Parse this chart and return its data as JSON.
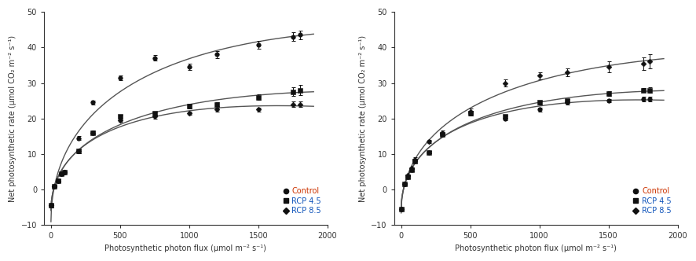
{
  "left": {
    "x_data": [
      0,
      25,
      50,
      75,
      100,
      200,
      300,
      500,
      750,
      1000,
      1200,
      1500,
      1750,
      1800
    ],
    "control_y": [
      -4.5,
      1.0,
      2.5,
      4.5,
      5.0,
      14.5,
      24.5,
      31.5,
      37.0,
      34.5,
      38.0,
      40.8,
      43.0,
      43.5
    ],
    "control_err": [
      0.5,
      0.4,
      0.4,
      0.4,
      0.4,
      0.5,
      0.6,
      0.7,
      0.8,
      0.9,
      1.0,
      1.1,
      1.2,
      1.3
    ],
    "rcp45_y": [
      -4.5,
      1.0,
      2.5,
      4.5,
      5.0,
      10.8,
      16.0,
      20.5,
      21.5,
      23.5,
      24.0,
      26.0,
      27.5,
      28.0
    ],
    "rcp45_err": [
      0.5,
      0.4,
      0.4,
      0.4,
      0.4,
      0.5,
      0.6,
      0.6,
      0.5,
      0.6,
      0.6,
      0.8,
      1.2,
      1.5
    ],
    "rcp85_y": [
      -4.5,
      1.0,
      2.5,
      4.5,
      5.0,
      10.8,
      16.0,
      19.5,
      20.5,
      21.5,
      22.5,
      22.5,
      24.0,
      24.0
    ],
    "rcp85_err": [
      0.5,
      0.4,
      0.4,
      0.4,
      0.4,
      0.5,
      0.5,
      0.5,
      0.5,
      0.5,
      0.5,
      0.5,
      0.7,
      0.8
    ],
    "ylim": [
      -10,
      50
    ],
    "xlim": [
      -50,
      2000
    ],
    "yticks": [
      -10,
      0,
      10,
      20,
      30,
      40,
      50
    ],
    "xticks": [
      0,
      500,
      1000,
      1500,
      2000
    ]
  },
  "right": {
    "x_data": [
      0,
      25,
      50,
      75,
      100,
      200,
      300,
      500,
      750,
      1000,
      1200,
      1500,
      1750,
      1800
    ],
    "control_y": [
      -5.5,
      1.5,
      3.5,
      5.5,
      8.0,
      10.5,
      15.5,
      21.5,
      20.0,
      22.5,
      24.5,
      25.0,
      25.5,
      25.5
    ],
    "control_err": [
      0.4,
      0.3,
      0.3,
      0.3,
      0.4,
      0.4,
      0.5,
      0.6,
      0.5,
      0.5,
      0.5,
      0.5,
      0.6,
      0.6
    ],
    "rcp45_y": [
      -5.5,
      1.5,
      3.5,
      5.5,
      8.0,
      10.5,
      15.5,
      21.5,
      20.5,
      24.5,
      25.0,
      27.0,
      28.0,
      28.0
    ],
    "rcp45_err": [
      0.4,
      0.3,
      0.3,
      0.3,
      0.4,
      0.4,
      0.5,
      0.6,
      0.5,
      0.6,
      0.5,
      0.6,
      0.6,
      0.7
    ],
    "rcp85_y": [
      -5.5,
      1.5,
      4.0,
      6.0,
      8.5,
      13.5,
      16.0,
      22.0,
      30.0,
      32.0,
      33.0,
      34.5,
      35.5,
      36.0
    ],
    "rcp85_err": [
      0.4,
      0.3,
      0.3,
      0.3,
      0.5,
      0.5,
      0.6,
      0.8,
      0.9,
      1.0,
      1.2,
      1.5,
      1.8,
      2.0
    ],
    "ylim": [
      -10,
      50
    ],
    "xlim": [
      -50,
      2000
    ],
    "yticks": [
      -10,
      0,
      10,
      20,
      30,
      40,
      50
    ],
    "xticks": [
      0,
      500,
      1000,
      1500,
      2000
    ]
  },
  "ylabel": "Net photosynthetic rate (μmol CO₂ m⁻² s⁻¹)",
  "xlabel": "Photosynthetic photon flux (μmol m⁻² s⁻¹)",
  "legend_labels_left": [
    "Control",
    "RCP 4.5",
    "RCP 8.5"
  ],
  "legend_labels_right": [
    "Control",
    "RCP 4.5",
    "RCP 8.5"
  ],
  "control_text_color": "#cc3300",
  "rcp45_text_color": "#1155bb",
  "rcp85_text_color": "#1155bb",
  "line_color": "#555555",
  "marker_color": "#111111",
  "axis_color": "#333333",
  "bg_color": "#ffffff"
}
